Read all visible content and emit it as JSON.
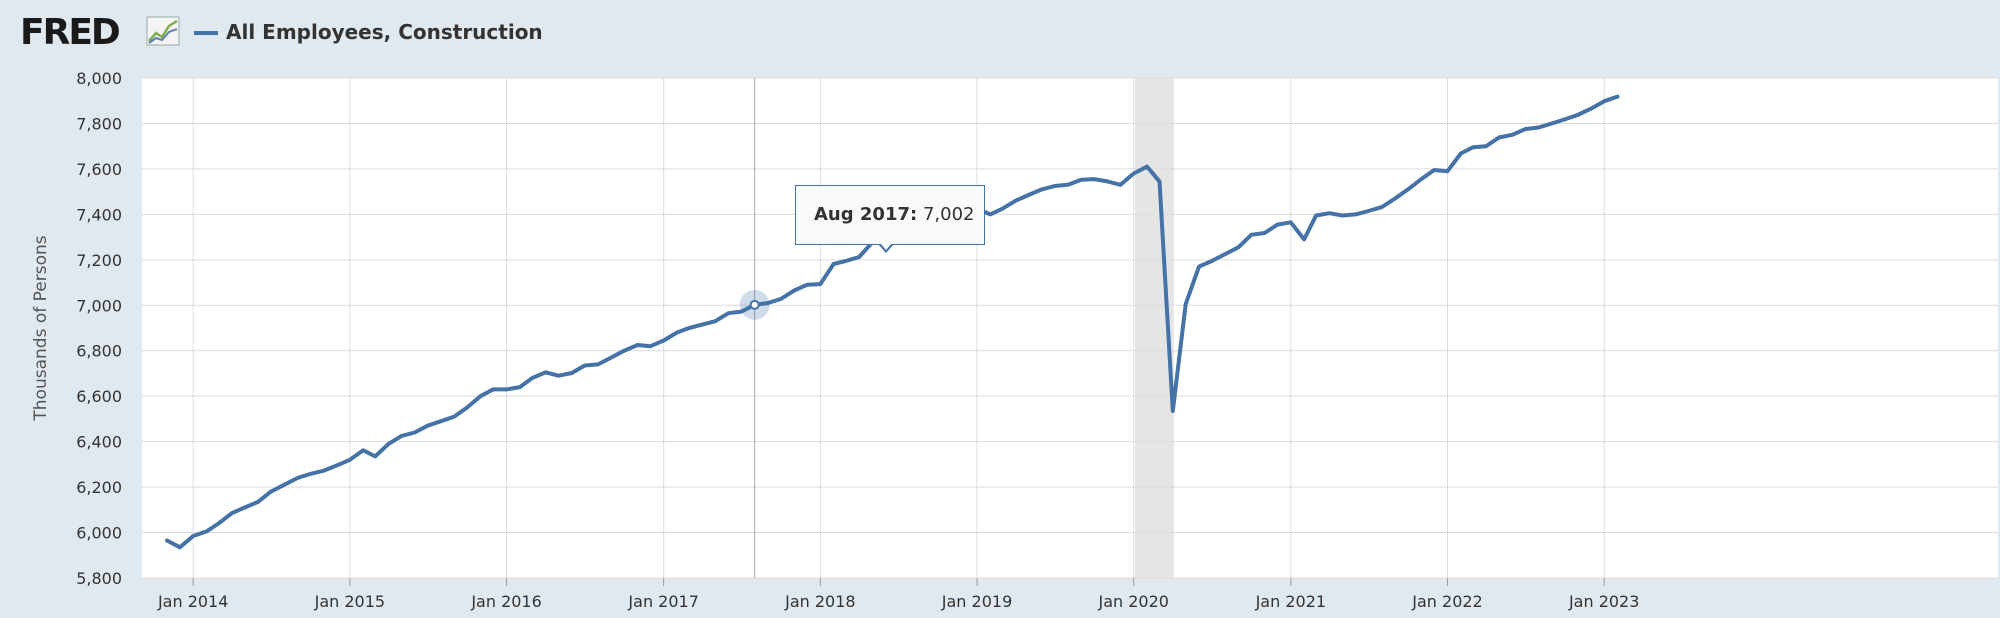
{
  "header": {
    "logo_text": "FRED",
    "logo_icon": "fred-chart-icon",
    "series_label": "All Employees, Construction"
  },
  "colors": {
    "line": "#4572a7",
    "recession": "#e5e5e5",
    "grid": "#dcdcdc",
    "background": "#e1e9f0"
  },
  "tooltip": {
    "date": "Aug 2017:",
    "value": "7,002"
  },
  "chart_data": {
    "type": "line",
    "ylabel": "Thousands of Persons",
    "ylim": [
      5800,
      8000
    ],
    "yticks": [
      5800,
      6000,
      6200,
      6400,
      6600,
      6800,
      7000,
      7200,
      7400,
      7600,
      7800,
      8000
    ],
    "ytick_labels": [
      "5,800",
      "6,000",
      "6,200",
      "6,400",
      "6,600",
      "6,800",
      "7,000",
      "7,200",
      "7,400",
      "7,600",
      "7,800",
      "8,000"
    ],
    "xticks": [
      "2014-01",
      "2015-01",
      "2016-01",
      "2017-01",
      "2018-01",
      "2019-01",
      "2020-01",
      "2021-01",
      "2022-01",
      "2023-01"
    ],
    "xtick_labels": [
      "Jan 2014",
      "Jan 2015",
      "Jan 2016",
      "Jan 2017",
      "Jan 2018",
      "Jan 2019",
      "Jan 2020",
      "Jan 2021",
      "Jan 2022",
      "Jan 2023"
    ],
    "recession": [
      "2020-02",
      "2020-04"
    ],
    "highlight": {
      "date": "2017-08",
      "value": 7002
    },
    "grid": true,
    "series": [
      {
        "name": "All Employees, Construction",
        "start": "2013-11",
        "values": [
          5965,
          5935,
          5985,
          6005,
          6040,
          6085,
          6110,
          6135,
          6180,
          6210,
          6240,
          6258,
          6272,
          6295,
          6320,
          6362,
          6335,
          6390,
          6425,
          6440,
          6470,
          6490,
          6510,
          6550,
          6600,
          6630,
          6630,
          6640,
          6680,
          6705,
          6690,
          6702,
          6735,
          6740,
          6770,
          6800,
          6825,
          6820,
          6845,
          6880,
          6900,
          6915,
          6930,
          6965,
          6972,
          7002,
          7010,
          7028,
          7065,
          7090,
          7093,
          7182,
          7195,
          7212,
          7275,
          7295,
          7320,
          7348,
          7375,
          7392,
          7388,
          7398,
          7425,
          7400,
          7425,
          7460,
          7485,
          7510,
          7525,
          7530,
          7552,
          7555,
          7545,
          7530,
          7580,
          7610,
          7545,
          6535,
          7005,
          7170,
          7195,
          7225,
          7255,
          7310,
          7318,
          7355,
          7365,
          7290,
          7395,
          7405,
          7395,
          7400,
          7415,
          7432,
          7470,
          7510,
          7555,
          7595,
          7590,
          7668,
          7695,
          7700,
          7738,
          7750,
          7775,
          7782,
          7800,
          7818,
          7838,
          7865,
          7898,
          7918
        ]
      }
    ]
  }
}
